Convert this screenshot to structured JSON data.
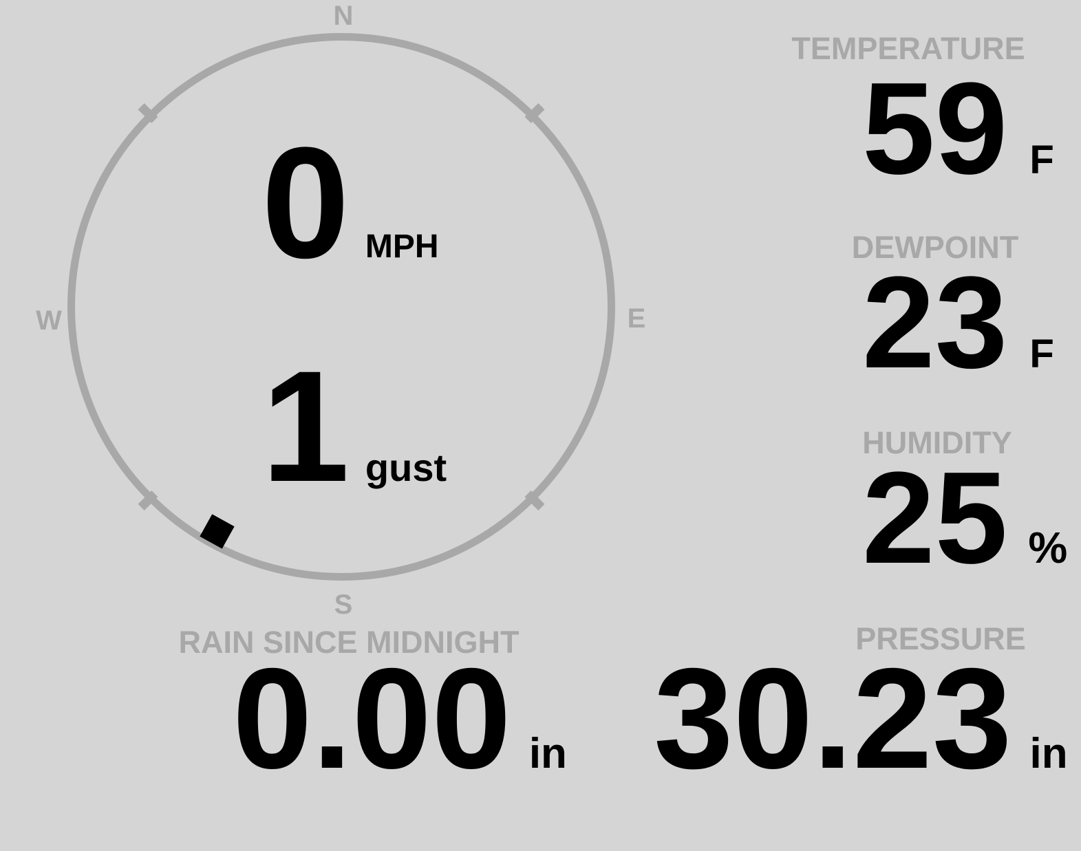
{
  "colors": {
    "background": "#d5d5d5",
    "muted": "#a8a8a8",
    "value": "#000000"
  },
  "compass": {
    "cardinal": {
      "n": "N",
      "e": "E",
      "s": "S",
      "w": "W"
    },
    "speed": {
      "value": "0",
      "unit": "MPH"
    },
    "gust": {
      "value": "1",
      "unit": "gust"
    },
    "wind_direction_deg": 209
  },
  "metrics": {
    "temperature": {
      "label": "TEMPERATURE",
      "value": "59",
      "unit": "F"
    },
    "dewpoint": {
      "label": "DEWPOINT",
      "value": "23",
      "unit": "F"
    },
    "humidity": {
      "label": "HUMIDITY",
      "value": "25",
      "unit": "%"
    },
    "pressure": {
      "label": "PRESSURE",
      "value": "30.23",
      "unit": "in"
    },
    "rain_since_midnight": {
      "label": "RAIN SINCE MIDNIGHT",
      "value": "0.00",
      "unit": "in"
    }
  }
}
